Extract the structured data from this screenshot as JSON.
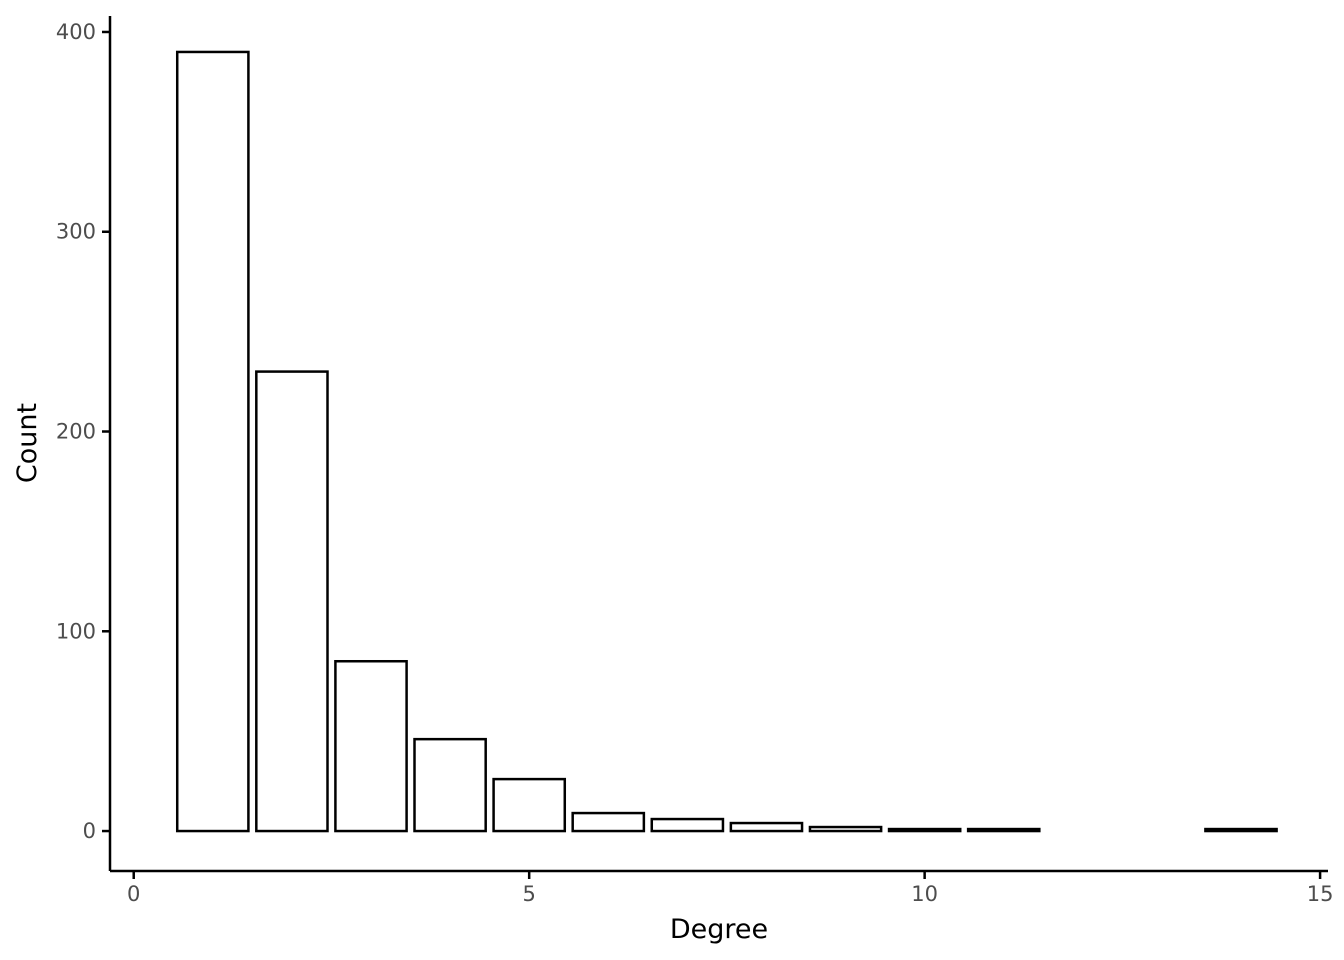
{
  "chart_data": {
    "type": "bar",
    "xlabel": "Degree",
    "ylabel": "Count",
    "x": [
      1,
      2,
      3,
      4,
      5,
      6,
      7,
      8,
      9,
      10,
      11,
      14
    ],
    "values": [
      390,
      230,
      85,
      46,
      26,
      9,
      6,
      4,
      2,
      1,
      1,
      1
    ],
    "xlim": [
      -0.3,
      15.1
    ],
    "ylim": [
      -20,
      408
    ],
    "xticks": [
      0,
      5,
      10,
      15
    ],
    "yticks": [
      0,
      100,
      200,
      300,
      400
    ],
    "xtick_labels": [
      "0",
      "5",
      "10",
      "15"
    ],
    "ytick_labels": [
      "0",
      "100",
      "200",
      "300",
      "400"
    ],
    "bar_width": 0.9,
    "grid": false,
    "legend": "none",
    "colors": {
      "bar_fill": "#ffffff",
      "bar_stroke": "#000000",
      "tick_text": "#4d4d4d"
    }
  }
}
